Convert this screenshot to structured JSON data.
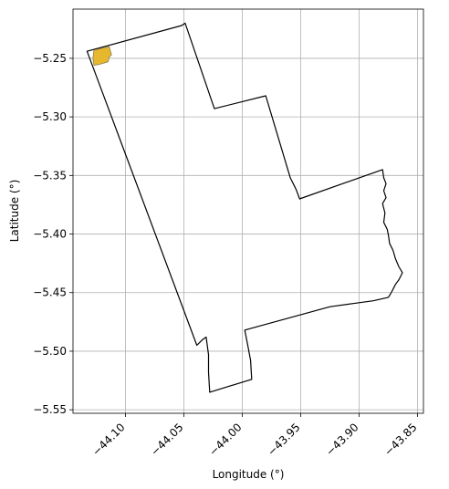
{
  "chart_data": {
    "type": "map",
    "xlabel": "Longitude (°)",
    "ylabel": "Latitude (°)",
    "xlim": [
      -44.145,
      -43.845
    ],
    "ylim": [
      -5.553,
      -5.208
    ],
    "grid": true,
    "x_ticks": [
      {
        "value": -44.1,
        "label": "−44.10"
      },
      {
        "value": -44.05,
        "label": "−44.05"
      },
      {
        "value": -44.0,
        "label": "−44.00"
      },
      {
        "value": -43.95,
        "label": "−43.95"
      },
      {
        "value": -43.9,
        "label": "−43.90"
      },
      {
        "value": -43.85,
        "label": "−43.85"
      }
    ],
    "y_ticks": [
      {
        "value": -5.25,
        "label": "−5.25"
      },
      {
        "value": -5.3,
        "label": "−5.30"
      },
      {
        "value": -5.35,
        "label": "−5.35"
      },
      {
        "value": -5.4,
        "label": "−5.40"
      },
      {
        "value": -5.45,
        "label": "−5.45"
      },
      {
        "value": -5.5,
        "label": "−5.50"
      },
      {
        "value": -5.55,
        "label": "−5.55"
      }
    ],
    "outline": {
      "stroke": "#000000",
      "fill": "none",
      "coords": [
        [
          -44.133,
          -5.244
        ],
        [
          -44.052,
          -5.222
        ],
        [
          -44.049,
          -5.22
        ],
        [
          -44.024,
          -5.293
        ],
        [
          -43.98,
          -5.282
        ],
        [
          -43.959,
          -5.352
        ],
        [
          -43.954,
          -5.362
        ],
        [
          -43.951,
          -5.37
        ],
        [
          -43.88,
          -5.345
        ],
        [
          -43.879,
          -5.352
        ],
        [
          -43.877,
          -5.357
        ],
        [
          -43.879,
          -5.363
        ],
        [
          -43.877,
          -5.369
        ],
        [
          -43.88,
          -5.374
        ],
        [
          -43.878,
          -5.382
        ],
        [
          -43.879,
          -5.39
        ],
        [
          -43.876,
          -5.396
        ],
        [
          -43.875,
          -5.401
        ],
        [
          -43.874,
          -5.408
        ],
        [
          -43.871,
          -5.414
        ],
        [
          -43.869,
          -5.421
        ],
        [
          -43.866,
          -5.428
        ],
        [
          -43.863,
          -5.433
        ],
        [
          -43.866,
          -5.439
        ],
        [
          -43.869,
          -5.443
        ],
        [
          -43.872,
          -5.449
        ],
        [
          -43.875,
          -5.454
        ],
        [
          -43.888,
          -5.457
        ],
        [
          -43.903,
          -5.459
        ],
        [
          -43.925,
          -5.462
        ],
        [
          -43.998,
          -5.482
        ],
        [
          -43.995,
          -5.497
        ],
        [
          -43.993,
          -5.508
        ],
        [
          -43.992,
          -5.524
        ],
        [
          -44.028,
          -5.535
        ],
        [
          -44.029,
          -5.518
        ],
        [
          -44.029,
          -5.503
        ],
        [
          -44.031,
          -5.488
        ],
        [
          -44.034,
          -5.49
        ],
        [
          -44.039,
          -5.495
        ],
        [
          -44.133,
          -5.244
        ]
      ]
    },
    "highlight": {
      "fill": "#e6b82e",
      "stroke": "#8a7a52",
      "coords": [
        [
          -44.127,
          -5.243
        ],
        [
          -44.114,
          -5.24
        ],
        [
          -44.112,
          -5.247
        ],
        [
          -44.114,
          -5.249
        ],
        [
          -44.115,
          -5.253
        ],
        [
          -44.122,
          -5.255
        ],
        [
          -44.127,
          -5.256
        ],
        [
          -44.128,
          -5.25
        ],
        [
          -44.127,
          -5.243
        ]
      ]
    }
  }
}
